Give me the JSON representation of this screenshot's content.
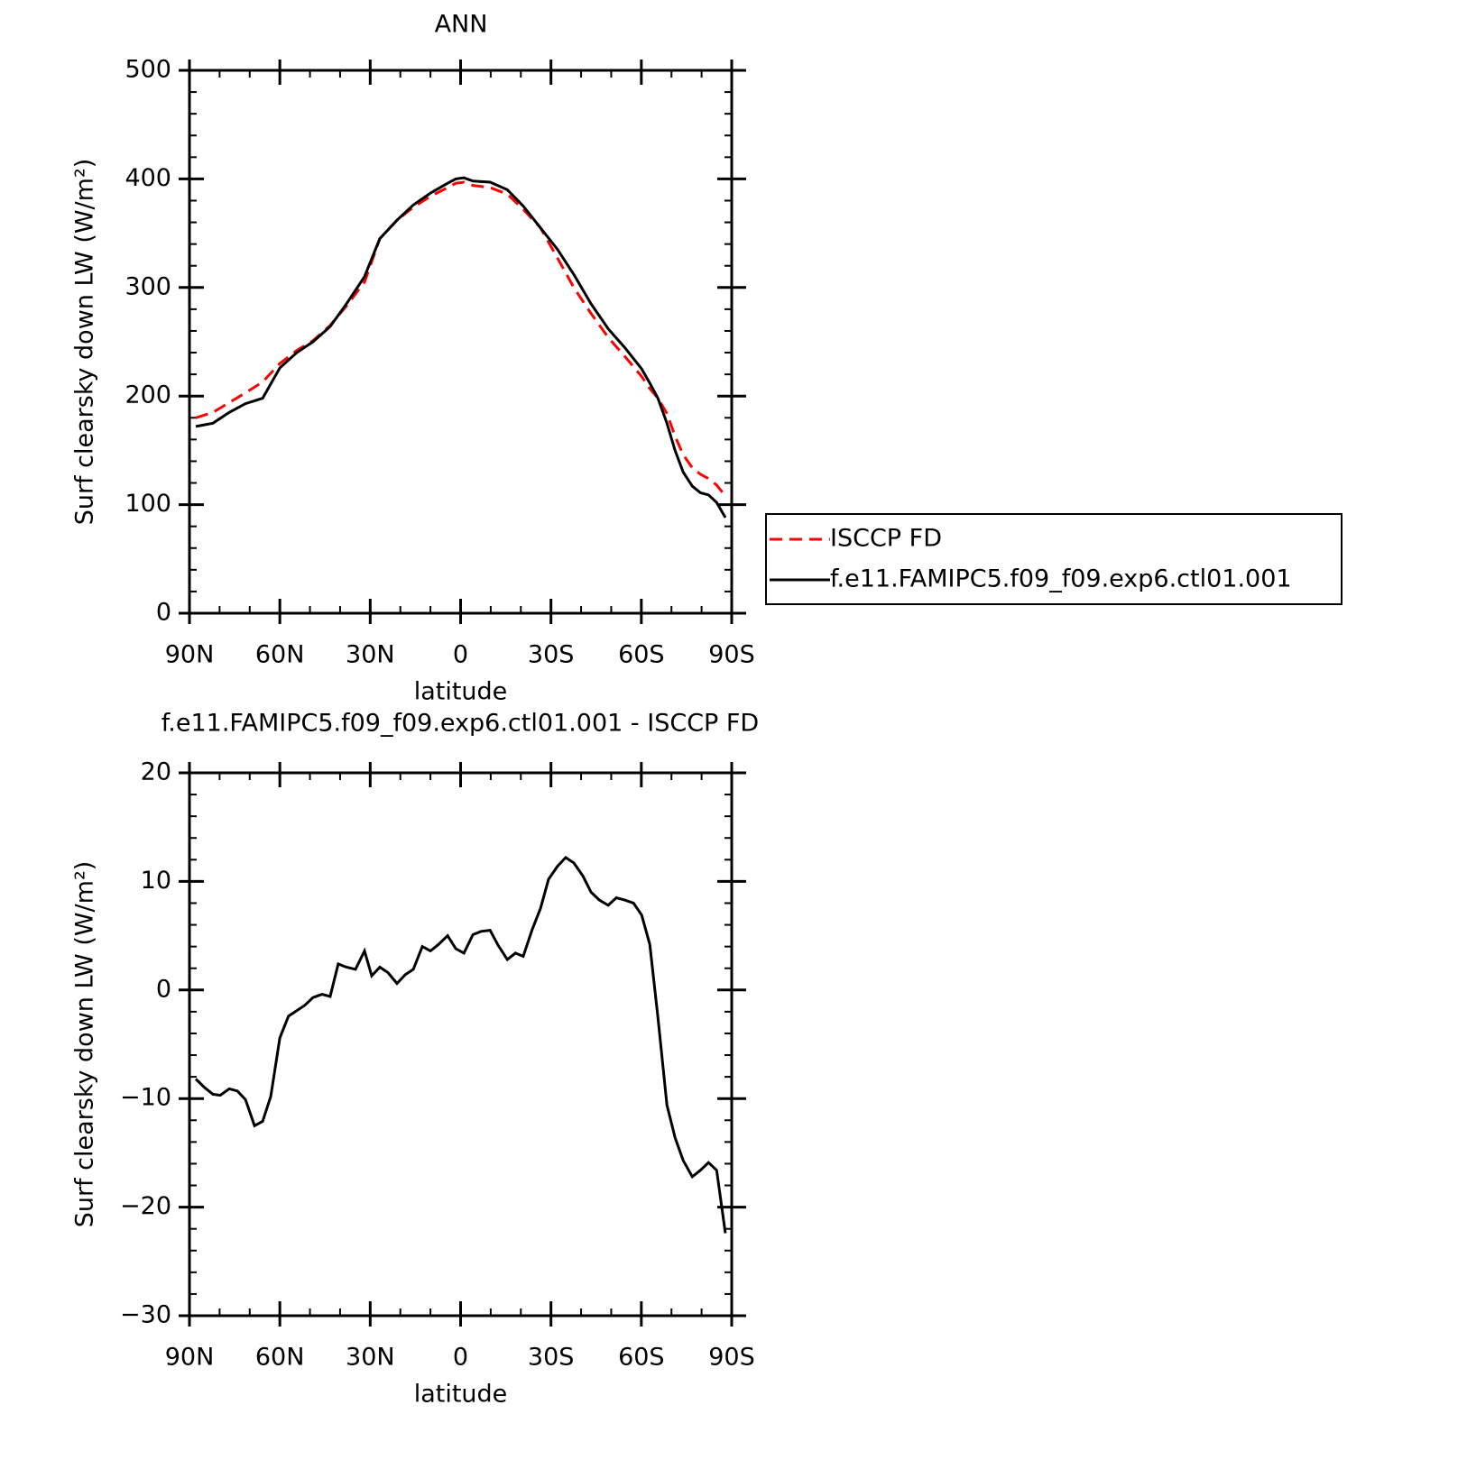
{
  "chart_data": [
    {
      "type": "line",
      "title": "ANN",
      "xlabel": "latitude",
      "ylabel": "Surf clearsky down LW (W/m²)",
      "xlim": [
        90,
        -90
      ],
      "xticks": [
        {
          "value": 90,
          "label": "90N"
        },
        {
          "value": 60,
          "label": "60N"
        },
        {
          "value": 30,
          "label": "30N"
        },
        0,
        {
          "value": -30,
          "label": "30S"
        },
        {
          "value": -60,
          "label": "60S"
        },
        {
          "value": -90,
          "label": "90S"
        }
      ],
      "ylim": [
        0,
        500
      ],
      "yticks": [
        0,
        100,
        200,
        300,
        400,
        500
      ],
      "legend": "outside right",
      "series": [
        {
          "name": "ISCCP FD",
          "color": "#ff0000",
          "line_style": "dashed",
          "x": [
            87.9,
            82.2,
            76.8,
            71.4,
            65.7,
            60.0,
            54.4,
            49.0,
            43.3,
            37.9,
            31.9,
            26.8,
            21.1,
            15.7,
            10.0,
            4.3,
            1.6,
            -1.1,
            -4.1,
            -9.8,
            -15.5,
            -20.8,
            -26.5,
            -32.2,
            -37.6,
            -43.3,
            -49.0,
            -54.4,
            -60.1,
            -62.8,
            -65.5,
            -68.5,
            -71.2,
            -73.9,
            -76.9,
            -79.6,
            -82.3,
            -85.0,
            -87.9
          ],
          "values": [
            180,
            185,
            194,
            203,
            213,
            230,
            242,
            251,
            265,
            283,
            305,
            345,
            362,
            374,
            384,
            392,
            396,
            397,
            394,
            392,
            386,
            372,
            355,
            327,
            300,
            276,
            254,
            237,
            218,
            207,
            198,
            184,
            163,
            146,
            134,
            128,
            124,
            118,
            108
          ]
        },
        {
          "name": "f.e11.FAMIPC5.f09_f09.exp6.ctl01.001",
          "color": "#000000",
          "line_style": "solid",
          "x": [
            87.9,
            82.2,
            76.8,
            71.4,
            65.7,
            60.0,
            54.4,
            49.0,
            43.3,
            37.9,
            31.9,
            26.8,
            21.1,
            15.7,
            10.0,
            4.3,
            1.6,
            -1.1,
            -4.1,
            -9.8,
            -15.5,
            -20.8,
            -26.5,
            -32.2,
            -37.6,
            -43.3,
            -49.0,
            -54.4,
            -60.1,
            -62.8,
            -65.5,
            -68.5,
            -71.2,
            -73.9,
            -76.9,
            -79.6,
            -82.3,
            -85.0,
            -87.9
          ],
          "values": [
            172,
            175,
            185,
            193,
            198,
            226,
            240,
            250,
            264,
            285,
            310,
            345,
            362,
            376,
            387,
            396,
            400,
            401,
            398,
            397,
            390,
            375,
            355,
            335,
            312,
            285,
            262,
            245,
            225,
            212,
            198,
            175,
            150,
            130,
            117,
            111,
            109,
            102,
            88
          ]
        }
      ]
    },
    {
      "type": "line",
      "title": "f.e11.FAMIPC5.f09_f09.exp6.ctl01.001 - ISCCP FD",
      "xlabel": "latitude",
      "ylabel": "Surf clearsky down LW (W/m²)",
      "xlim": [
        90,
        -90
      ],
      "xticks": [
        {
          "value": 90,
          "label": "90N"
        },
        {
          "value": 60,
          "label": "60N"
        },
        {
          "value": 30,
          "label": "30N"
        },
        0,
        {
          "value": -30,
          "label": "30S"
        },
        {
          "value": -60,
          "label": "60S"
        },
        {
          "value": -90,
          "label": "90S"
        }
      ],
      "ylim": [
        -30,
        20
      ],
      "yticks": [
        {
          "value": -30,
          "label": "−30"
        },
        {
          "value": -20,
          "label": "−20"
        },
        {
          "value": -10,
          "label": "−10"
        },
        0,
        10,
        20
      ],
      "series": [
        {
          "color": "#000000",
          "line_style": "solid",
          "x": [
            87.9,
            84.9,
            82.2,
            79.8,
            76.8,
            74.1,
            71.4,
            68.4,
            65.7,
            63.0,
            60.0,
            57.1,
            54.4,
            51.7,
            49.0,
            46.0,
            43.3,
            40.6,
            37.9,
            34.9,
            31.9,
            29.5,
            26.8,
            24.1,
            21.1,
            18.4,
            15.7,
            12.7,
            10.0,
            7.3,
            4.3,
            1.6,
            -1.1,
            -4.1,
            -6.8,
            -9.8,
            -12.5,
            -15.5,
            -18.2,
            -20.8,
            -23.8,
            -26.5,
            -29.2,
            -32.2,
            -34.9,
            -37.6,
            -40.6,
            -43.3,
            -46.0,
            -49.0,
            -51.7,
            -54.4,
            -57.4,
            -60.1,
            -62.8,
            -65.5,
            -68.5,
            -71.2,
            -73.9,
            -76.9,
            -79.6,
            -82.3,
            -85.0,
            -87.9
          ],
          "values": [
            -8.2,
            -9.0,
            -9.6,
            -9.7,
            -9.1,
            -9.3,
            -10.1,
            -12.5,
            -12.1,
            -9.8,
            -4.4,
            -2.4,
            -1.9,
            -1.4,
            -0.7,
            -0.4,
            -0.6,
            2.4,
            2.1,
            1.9,
            3.6,
            1.3,
            2.1,
            1.6,
            0.6,
            1.4,
            1.9,
            4.0,
            3.6,
            4.2,
            5.0,
            3.8,
            3.4,
            5.1,
            5.4,
            5.5,
            4.1,
            2.8,
            3.4,
            3.1,
            5.6,
            7.5,
            10.2,
            11.4,
            12.2,
            11.7,
            10.5,
            9.0,
            8.3,
            7.8,
            8.5,
            8.3,
            8.0,
            6.9,
            4.2,
            -2.5,
            -10.6,
            -13.6,
            -15.7,
            -17.2,
            -16.6,
            -15.9,
            -16.6,
            -22.4
          ]
        }
      ]
    }
  ]
}
